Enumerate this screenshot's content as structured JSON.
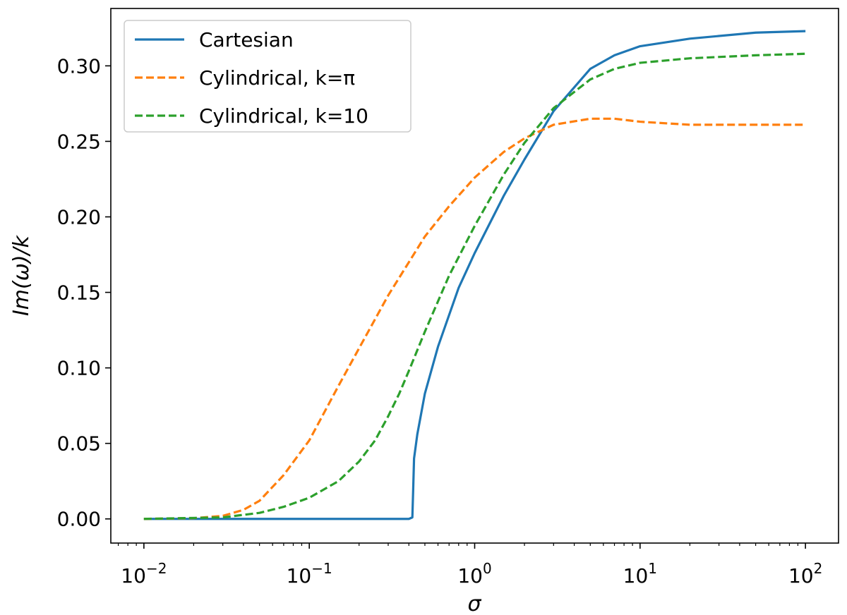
{
  "chart_data": {
    "type": "line",
    "xscale": "log",
    "xlim": [
      0.01,
      100
    ],
    "ylim": [
      -0.016,
      0.338
    ],
    "xlabel": "σ",
    "ylabel": "Im(ω)/k",
    "x_ticks": [
      {
        "value": 0.01,
        "base": "10",
        "exp": "−2"
      },
      {
        "value": 0.1,
        "base": "10",
        "exp": "−1"
      },
      {
        "value": 1,
        "base": "10",
        "exp": "0"
      },
      {
        "value": 10,
        "base": "10",
        "exp": "1"
      },
      {
        "value": 100,
        "base": "10",
        "exp": "2"
      }
    ],
    "y_ticks": [
      {
        "value": 0.0,
        "label": "0.00"
      },
      {
        "value": 0.05,
        "label": "0.05"
      },
      {
        "value": 0.1,
        "label": "0.10"
      },
      {
        "value": 0.15,
        "label": "0.15"
      },
      {
        "value": 0.2,
        "label": "0.20"
      },
      {
        "value": 0.25,
        "label": "0.25"
      },
      {
        "value": 0.3,
        "label": "0.30"
      }
    ],
    "legend_position": "top-left",
    "series": [
      {
        "name": "Cartesian",
        "color": "#1f77b4",
        "dash": "solid",
        "x": [
          0.01,
          0.1,
          0.3,
          0.4,
          0.42,
          0.425,
          0.43,
          0.45,
          0.5,
          0.6,
          0.8,
          1.0,
          1.5,
          2.0,
          3.0,
          5.0,
          7.0,
          10,
          20,
          50,
          100
        ],
        "y": [
          0.0,
          0.0,
          0.0,
          0.0,
          0.001,
          0.02,
          0.04,
          0.056,
          0.083,
          0.114,
          0.153,
          0.176,
          0.214,
          0.238,
          0.27,
          0.298,
          0.307,
          0.313,
          0.318,
          0.322,
          0.323
        ]
      },
      {
        "name": "Cylindrical, k=π",
        "color": "#ff7f0e",
        "dash": "dashed",
        "x": [
          0.01,
          0.02,
          0.03,
          0.04,
          0.05,
          0.07,
          0.1,
          0.15,
          0.2,
          0.3,
          0.5,
          0.7,
          1.0,
          1.5,
          2.0,
          3.0,
          5.0,
          7.0,
          10,
          20,
          50,
          100
        ],
        "y": [
          0.0,
          0.0005,
          0.002,
          0.006,
          0.012,
          0.029,
          0.052,
          0.088,
          0.113,
          0.148,
          0.187,
          0.207,
          0.226,
          0.243,
          0.252,
          0.261,
          0.265,
          0.265,
          0.263,
          0.261,
          0.261,
          0.261
        ]
      },
      {
        "name": "Cylindrical, k=10",
        "color": "#2ca02c",
        "dash": "dashed",
        "x": [
          0.01,
          0.03,
          0.05,
          0.07,
          0.1,
          0.15,
          0.2,
          0.25,
          0.3,
          0.35,
          0.4,
          0.5,
          0.7,
          1.0,
          1.5,
          2.0,
          3.0,
          5.0,
          7.0,
          10,
          20,
          50,
          100
        ],
        "y": [
          0.0,
          0.001,
          0.004,
          0.008,
          0.014,
          0.025,
          0.038,
          0.052,
          0.068,
          0.083,
          0.098,
          0.124,
          0.161,
          0.194,
          0.228,
          0.249,
          0.272,
          0.291,
          0.298,
          0.302,
          0.305,
          0.307,
          0.308
        ]
      }
    ]
  }
}
